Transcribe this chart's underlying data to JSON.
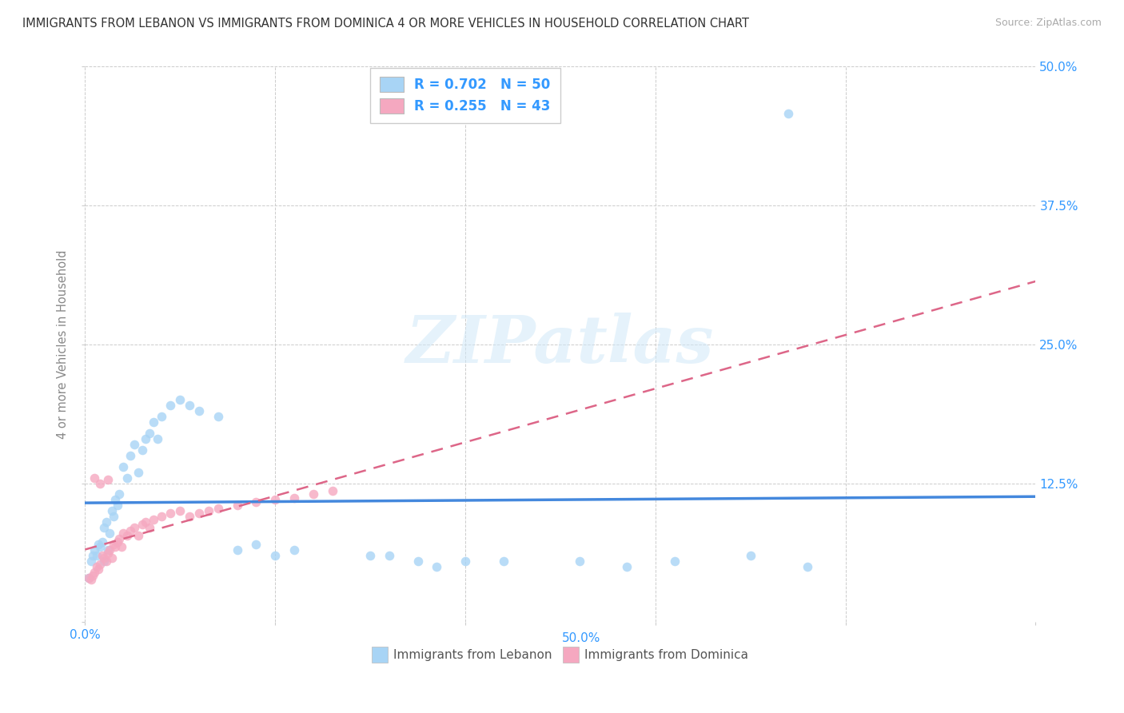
{
  "title": "IMMIGRANTS FROM LEBANON VS IMMIGRANTS FROM DOMINICA 4 OR MORE VEHICLES IN HOUSEHOLD CORRELATION CHART",
  "source": "Source: ZipAtlas.com",
  "ylabel": "4 or more Vehicles in Household",
  "xlim": [
    0.0,
    0.5
  ],
  "ylim": [
    0.0,
    0.5
  ],
  "background_color": "#ffffff",
  "lebanon_color": "#a8d4f5",
  "dominica_color": "#f5a8c0",
  "lebanon_line_color": "#4488dd",
  "dominica_line_color": "#dd6688",
  "R_lebanon": 0.702,
  "N_lebanon": 50,
  "R_dominica": 0.255,
  "N_dominica": 43,
  "watermark": "ZIPatlas",
  "leb_x": [
    0.002,
    0.003,
    0.004,
    0.005,
    0.006,
    0.007,
    0.008,
    0.009,
    0.01,
    0.01,
    0.011,
    0.012,
    0.013,
    0.014,
    0.015,
    0.016,
    0.017,
    0.018,
    0.02,
    0.022,
    0.024,
    0.026,
    0.028,
    0.03,
    0.032,
    0.034,
    0.036,
    0.038,
    0.04,
    0.045,
    0.05,
    0.055,
    0.06,
    0.07,
    0.08,
    0.09,
    0.1,
    0.11,
    0.15,
    0.16,
    0.175,
    0.185,
    0.2,
    0.22,
    0.26,
    0.285,
    0.31,
    0.35,
    0.37,
    0.38
  ],
  "leb_y": [
    0.04,
    0.055,
    0.06,
    0.065,
    0.06,
    0.07,
    0.068,
    0.072,
    0.055,
    0.085,
    0.09,
    0.065,
    0.08,
    0.1,
    0.095,
    0.11,
    0.105,
    0.115,
    0.14,
    0.13,
    0.15,
    0.16,
    0.135,
    0.155,
    0.165,
    0.17,
    0.18,
    0.165,
    0.185,
    0.195,
    0.2,
    0.195,
    0.19,
    0.185,
    0.065,
    0.07,
    0.06,
    0.065,
    0.06,
    0.06,
    0.055,
    0.05,
    0.055,
    0.055,
    0.055,
    0.05,
    0.055,
    0.06,
    0.458,
    0.05
  ],
  "dom_x": [
    0.002,
    0.003,
    0.004,
    0.005,
    0.006,
    0.007,
    0.008,
    0.009,
    0.01,
    0.011,
    0.012,
    0.013,
    0.014,
    0.015,
    0.016,
    0.017,
    0.018,
    0.019,
    0.02,
    0.022,
    0.024,
    0.026,
    0.028,
    0.03,
    0.032,
    0.034,
    0.036,
    0.04,
    0.045,
    0.05,
    0.055,
    0.06,
    0.065,
    0.07,
    0.08,
    0.09,
    0.1,
    0.11,
    0.12,
    0.13,
    0.005,
    0.008,
    0.012
  ],
  "dom_y": [
    0.04,
    0.038,
    0.042,
    0.045,
    0.05,
    0.048,
    0.052,
    0.06,
    0.058,
    0.055,
    0.062,
    0.065,
    0.058,
    0.07,
    0.068,
    0.072,
    0.075,
    0.068,
    0.08,
    0.078,
    0.082,
    0.085,
    0.078,
    0.088,
    0.09,
    0.085,
    0.092,
    0.095,
    0.098,
    0.1,
    0.095,
    0.098,
    0.1,
    0.102,
    0.105,
    0.108,
    0.11,
    0.112,
    0.115,
    0.118,
    0.13,
    0.125,
    0.128
  ]
}
